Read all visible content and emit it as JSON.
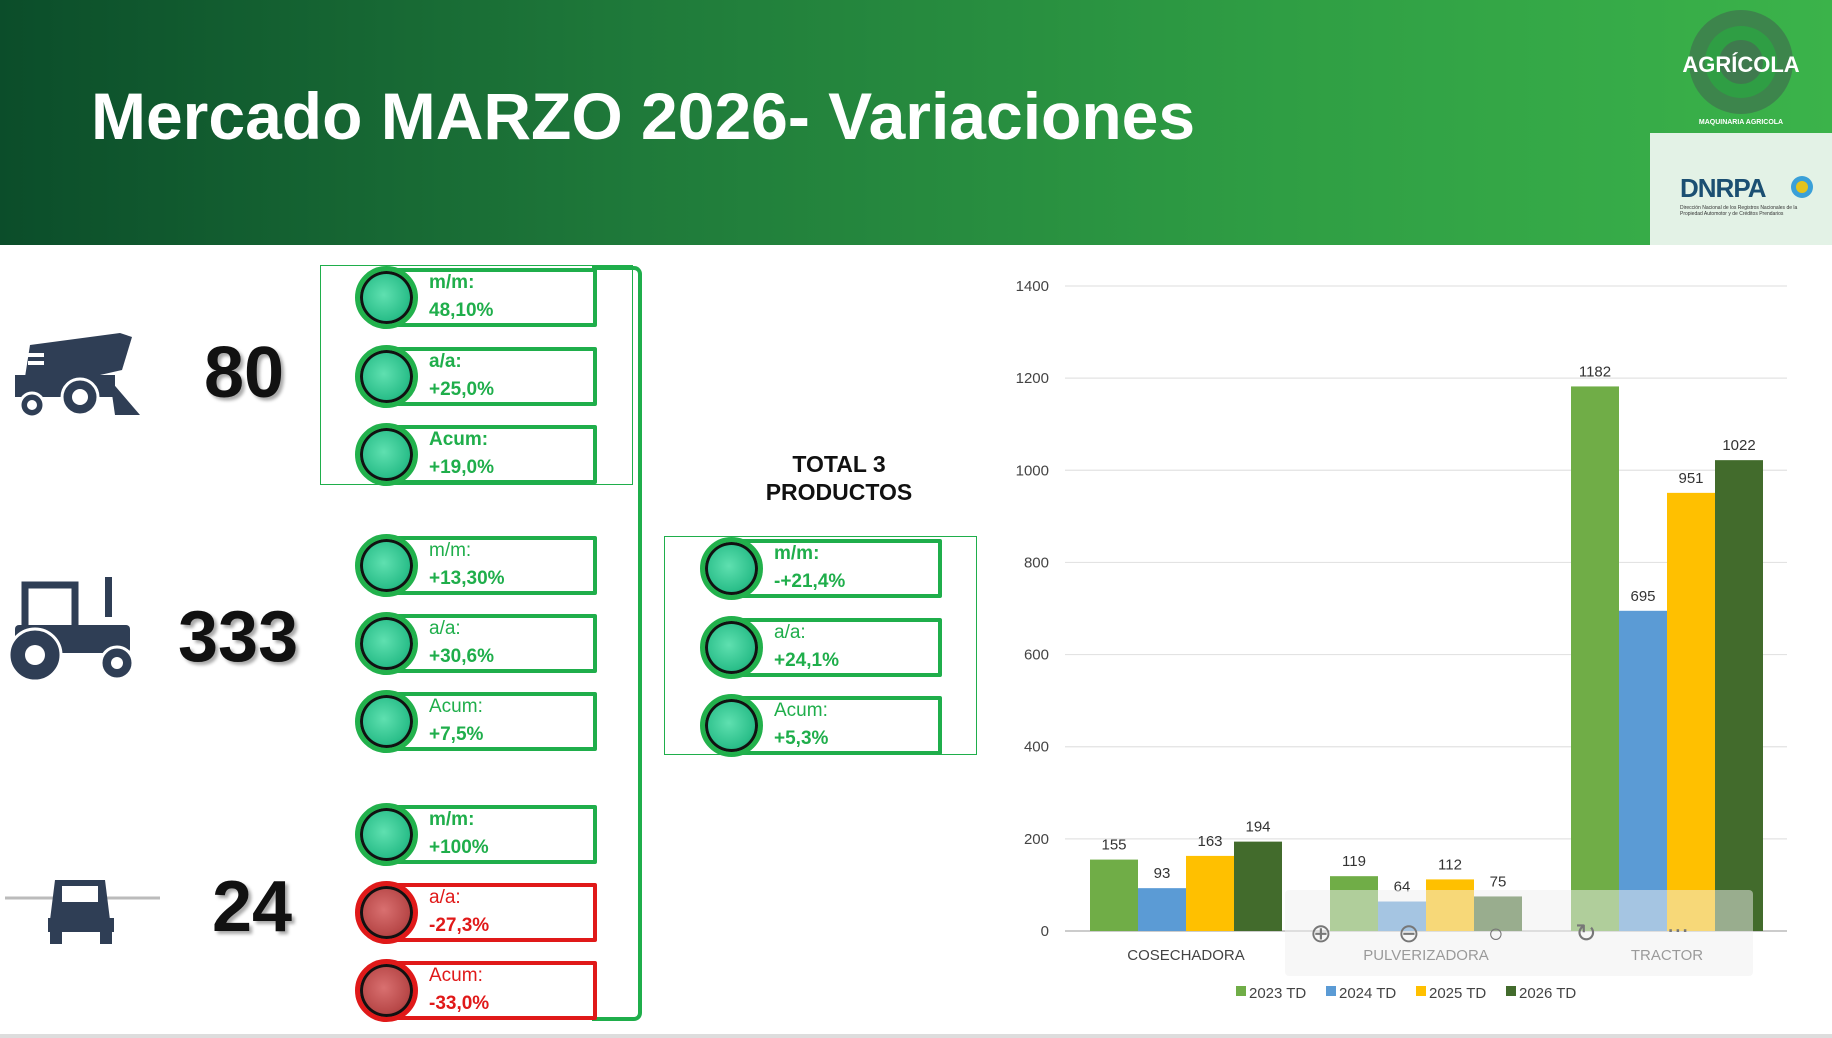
{
  "header": {
    "title": "Mercado MARZO 2026- Variaciones"
  },
  "logos": {
    "agricola": "AGRÍCOLA",
    "agricola_sub": "MAQUINARIA AGRICOLA",
    "dnrpa": "DNRPA",
    "dnrpa_sub": "Dirección Nacional de los Registros Nacionales de la Propiedad Automotor y de Créditos Prendarios"
  },
  "products": [
    {
      "icon": "harvester-icon",
      "count": "80",
      "indicators": [
        {
          "label": "m/m:",
          "value": "48,10%",
          "status": "green"
        },
        {
          "label": "a/a:",
          "value": "+25,0%",
          "status": "green"
        },
        {
          "label": "Acum:",
          "value": "+19,0%",
          "status": "green"
        }
      ]
    },
    {
      "icon": "tractor-icon",
      "count": "333",
      "indicators": [
        {
          "label": "m/m:",
          "value": "+13,30%",
          "status": "green"
        },
        {
          "label": "a/a:",
          "value": "+30,6%",
          "status": "green"
        },
        {
          "label": "Acum:",
          "value": "+7,5%",
          "status": "green"
        }
      ]
    },
    {
      "icon": "sprayer-icon",
      "count": "24",
      "indicators": [
        {
          "label": "m/m:",
          "value": "+100%",
          "status": "green"
        },
        {
          "label": "a/a:",
          "value": "-27,3%",
          "status": "red"
        },
        {
          "label": "Acum:",
          "value": "-33,0%",
          "status": "red"
        }
      ]
    }
  ],
  "total": {
    "title_line1": "TOTAL 3",
    "title_line2": "PRODUCTOS",
    "indicators": [
      {
        "label": "m/m:",
        "value": "-+21,4%",
        "status": "green"
      },
      {
        "label": "a/a:",
        "value": "+24,1%",
        "status": "green"
      },
      {
        "label": "Acum:",
        "value": "+5,3%",
        "status": "green"
      }
    ]
  },
  "colors": {
    "green": "#1fae4b",
    "red": "#e01919"
  },
  "chart_data": {
    "type": "bar",
    "categories": [
      "COSECHADORA",
      "PULVERIZADORA",
      "TRACTOR"
    ],
    "series": [
      {
        "name": "2023 TD",
        "color": "#70ad47",
        "values": [
          155,
          119,
          1182
        ]
      },
      {
        "name": "2024 TD",
        "color": "#5b9bd5",
        "values": [
          93,
          64,
          695
        ]
      },
      {
        "name": "2025 TD",
        "color": "#ffc000",
        "values": [
          163,
          112,
          951
        ]
      },
      {
        "name": "2026 TD",
        "color": "#426b2c",
        "values": [
          194,
          75,
          1022
        ]
      }
    ],
    "ylim": [
      0,
      1400
    ],
    "yticks": [
      0,
      200,
      400,
      600,
      800,
      1000,
      1200,
      1400
    ],
    "grid": true,
    "legend": "bottom"
  },
  "viewer_tools": {
    "more": "..."
  }
}
